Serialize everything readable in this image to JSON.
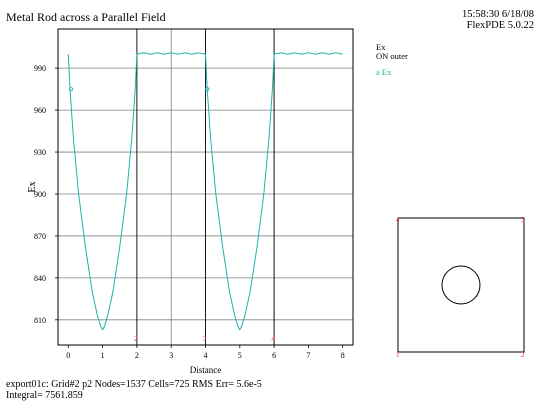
{
  "header": {
    "title": "Metal Rod across a Parallel Field",
    "time": "15:58:30 6/18/08",
    "version": "FlexPDE 5.0.22"
  },
  "legend": {
    "quantity": "Ex",
    "context": "ON outer",
    "series_label": "a  Ex"
  },
  "footer": {
    "line1": "export01c:  Grid#2  p2  Nodes=1537 Cells=725 RMS Err= 5.6e-5",
    "line2": "Integral=  7561.859"
  },
  "colors": {
    "series": "#20b2aa",
    "grid": "#808080",
    "marker": "#e03030"
  },
  "chart_data": {
    "type": "line",
    "title": "Metal Rod across a Parallel Field",
    "xlabel": "Distance",
    "ylabel": "Ex",
    "xlim": [
      -0.3,
      8.3
    ],
    "ylim": [
      792,
      1018
    ],
    "x_ticks": [
      0,
      1,
      2,
      3,
      4,
      5,
      6,
      7,
      8
    ],
    "y_ticks": [
      810,
      840,
      870,
      900,
      930,
      960,
      990
    ],
    "grid": true,
    "vertical_gridlines": [
      3,
      6
    ],
    "boundary_markers": [
      {
        "x": 2,
        "label": "2"
      },
      {
        "x": 4,
        "label": "3"
      },
      {
        "x": 6,
        "label": "4"
      }
    ],
    "series": [
      {
        "name": "Ex",
        "x": [
          0,
          0.05,
          0.15,
          0.3,
          0.5,
          0.7,
          0.85,
          0.95,
          1.0,
          1.05,
          1.15,
          1.3,
          1.5,
          1.7,
          1.85,
          1.95,
          2.0,
          2.2,
          2.4,
          2.6,
          2.8,
          3.0,
          3.2,
          3.4,
          3.6,
          3.8,
          4.0,
          4.05,
          4.15,
          4.3,
          4.5,
          4.7,
          4.85,
          4.95,
          5.0,
          5.05,
          5.15,
          5.3,
          5.5,
          5.7,
          5.85,
          5.95,
          6.0,
          6.2,
          6.4,
          6.6,
          6.8,
          7.0,
          7.2,
          7.4,
          7.6,
          7.8,
          8.0
        ],
        "y": [
          1000,
          975,
          940,
          900,
          862,
          830,
          813,
          805,
          803,
          805,
          813,
          830,
          862,
          900,
          940,
          975,
          1000,
          1001,
          1000,
          1001,
          1000,
          1001,
          1000,
          1001,
          1000,
          1001,
          1000,
          975,
          940,
          900,
          862,
          830,
          813,
          805,
          803,
          805,
          813,
          830,
          862,
          900,
          940,
          975,
          1000,
          1001,
          1000,
          1001,
          1000,
          1001,
          1000,
          1001,
          1000,
          1001,
          1000
        ]
      }
    ]
  },
  "inset": {
    "corner_labels": [
      "1",
      "2",
      "3",
      "4"
    ]
  }
}
